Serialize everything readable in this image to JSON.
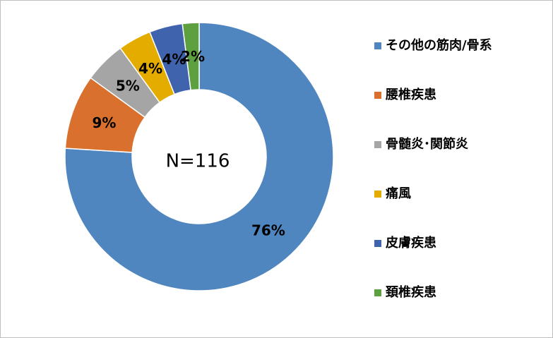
{
  "chart_data": {
    "type": "donut",
    "center_label": "N=116",
    "categories": [
      "その他の筋肉/骨系",
      "腰椎疾患",
      "骨髄炎･関節炎",
      "痛風",
      "皮膚疾患",
      "頚椎疾患"
    ],
    "values": [
      76,
      9,
      5,
      4,
      4,
      2
    ],
    "value_labels": [
      "76%",
      "9%",
      "5%",
      "4%",
      "4%",
      "2%"
    ],
    "colors": [
      "#4f86c0",
      "#d9702e",
      "#a5a5a5",
      "#e5ac00",
      "#3f63ad",
      "#5da03f"
    ],
    "legend": "right"
  }
}
